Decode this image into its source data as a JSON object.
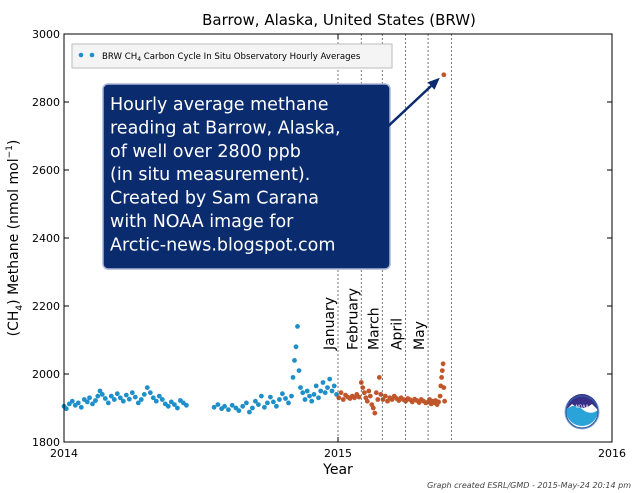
{
  "chart_data": {
    "type": "scatter",
    "title": "Barrow, Alaska, United States (BRW)",
    "xlabel": "Year",
    "ylabel": "(CH4) Methane (nmol mol−1)",
    "ylabel_parts": {
      "pre": "(CH",
      "sub": "4",
      "mid": ") Methane (nmol mol",
      "sup": "−1",
      "post": ")"
    },
    "xlim": [
      "2014-01-01",
      "2016-01-01"
    ],
    "ylim": [
      1800,
      3000
    ],
    "x_ticks": [
      {
        "value": "2014-01-01",
        "label": "2014"
      },
      {
        "value": "2015-01-01",
        "label": "2015"
      },
      {
        "value": "2016-01-01",
        "label": "2016"
      }
    ],
    "y_ticks": [
      1800,
      2000,
      2200,
      2400,
      2600,
      2800,
      3000
    ],
    "grid": false,
    "legend_position": "top-left",
    "legend": {
      "pre": "BRW CH",
      "sub": "4",
      "post": " Carbon Cycle In Situ Observatory Hourly Averages"
    },
    "month_markers": [
      {
        "label": "January",
        "date": "2015-01-01"
      },
      {
        "label": "February",
        "date": "2015-02-01"
      },
      {
        "label": "March",
        "date": "2015-03-01"
      },
      {
        "label": "April",
        "date": "2015-04-01"
      },
      {
        "label": "May",
        "date": "2015-05-01"
      }
    ],
    "annotation": {
      "lines": [
        "Hourly average methane",
        "reading at Barrow, Alaska,",
        "of well over 2800 ppb",
        "(in situ measurement).",
        "Created by Sam Carana",
        "with NOAA image for",
        "Arctic-news.blogspot.com"
      ],
      "arrow_to": {
        "x": "2015-05-22",
        "y": 2880
      }
    },
    "series": [
      {
        "color": "#1f8fc9",
        "points": [
          [
            "2014-01-01",
            1905
          ],
          [
            "2014-01-04",
            1898
          ],
          [
            "2014-01-08",
            1912
          ],
          [
            "2014-01-12",
            1920
          ],
          [
            "2014-01-16",
            1908
          ],
          [
            "2014-01-20",
            1915
          ],
          [
            "2014-01-24",
            1902
          ],
          [
            "2014-01-28",
            1925
          ],
          [
            "2014-02-01",
            1918
          ],
          [
            "2014-02-04",
            1930
          ],
          [
            "2014-02-08",
            1912
          ],
          [
            "2014-02-12",
            1922
          ],
          [
            "2014-02-15",
            1935
          ],
          [
            "2014-02-18",
            1950
          ],
          [
            "2014-02-21",
            1940
          ],
          [
            "2014-02-25",
            1928
          ],
          [
            "2014-03-01",
            1915
          ],
          [
            "2014-03-05",
            1935
          ],
          [
            "2014-03-09",
            1925
          ],
          [
            "2014-03-13",
            1942
          ],
          [
            "2014-03-17",
            1930
          ],
          [
            "2014-03-21",
            1920
          ],
          [
            "2014-03-25",
            1938
          ],
          [
            "2014-03-29",
            1926
          ],
          [
            "2014-04-02",
            1945
          ],
          [
            "2014-04-06",
            1932
          ],
          [
            "2014-04-10",
            1915
          ],
          [
            "2014-04-14",
            1925
          ],
          [
            "2014-04-18",
            1940
          ],
          [
            "2014-04-22",
            1960
          ],
          [
            "2014-04-26",
            1945
          ],
          [
            "2014-04-30",
            1930
          ],
          [
            "2014-05-04",
            1920
          ],
          [
            "2014-05-08",
            1935
          ],
          [
            "2014-05-12",
            1925
          ],
          [
            "2014-05-16",
            1912
          ],
          [
            "2014-05-20",
            1905
          ],
          [
            "2014-05-24",
            1918
          ],
          [
            "2014-05-28",
            1910
          ],
          [
            "2014-06-01",
            1900
          ],
          [
            "2014-06-05",
            1922
          ],
          [
            "2014-06-09",
            1915
          ],
          [
            "2014-06-13",
            1908
          ],
          [
            "2014-07-20",
            1902
          ],
          [
            "2014-07-25",
            1910
          ],
          [
            "2014-07-30",
            1898
          ],
          [
            "2014-08-03",
            1905
          ],
          [
            "2014-08-08",
            1895
          ],
          [
            "2014-08-13",
            1908
          ],
          [
            "2014-08-18",
            1900
          ],
          [
            "2014-08-22",
            1892
          ],
          [
            "2014-08-27",
            1905
          ],
          [
            "2014-09-01",
            1915
          ],
          [
            "2014-09-05",
            1888
          ],
          [
            "2014-09-09",
            1900
          ],
          [
            "2014-09-13",
            1920
          ],
          [
            "2014-09-17",
            1910
          ],
          [
            "2014-09-21",
            1935
          ],
          [
            "2014-09-25",
            1902
          ],
          [
            "2014-09-29",
            1915
          ],
          [
            "2014-10-03",
            1932
          ],
          [
            "2014-10-07",
            1918
          ],
          [
            "2014-10-11",
            1905
          ],
          [
            "2014-10-15",
            1925
          ],
          [
            "2014-10-19",
            1942
          ],
          [
            "2014-10-23",
            1928
          ],
          [
            "2014-10-27",
            1915
          ],
          [
            "2014-10-31",
            1935
          ],
          [
            "2014-11-02",
            1990
          ],
          [
            "2014-11-04",
            2040
          ],
          [
            "2014-11-06",
            2080
          ],
          [
            "2014-11-08",
            2140
          ],
          [
            "2014-11-10",
            2010
          ],
          [
            "2014-11-12",
            1960
          ],
          [
            "2014-11-15",
            1945
          ],
          [
            "2014-11-18",
            1925
          ],
          [
            "2014-11-21",
            1950
          ],
          [
            "2014-11-24",
            1935
          ],
          [
            "2014-11-27",
            1920
          ],
          [
            "2014-11-30",
            1940
          ],
          [
            "2014-12-03",
            1965
          ],
          [
            "2014-12-06",
            1930
          ],
          [
            "2014-12-09",
            1950
          ],
          [
            "2014-12-12",
            1975
          ],
          [
            "2014-12-15",
            1945
          ],
          [
            "2014-12-18",
            1960
          ],
          [
            "2014-12-21",
            1985
          ],
          [
            "2014-12-24",
            1950
          ],
          [
            "2014-12-27",
            1965
          ],
          [
            "2014-12-30",
            1940
          ]
        ]
      },
      {
        "color": "#c0562a",
        "points": [
          [
            "2015-01-02",
            1930
          ],
          [
            "2015-01-05",
            1945
          ],
          [
            "2015-01-08",
            1925
          ],
          [
            "2015-01-11",
            1938
          ],
          [
            "2015-01-14",
            1932
          ],
          [
            "2015-01-17",
            1928
          ],
          [
            "2015-01-20",
            1935
          ],
          [
            "2015-01-23",
            1930
          ],
          [
            "2015-01-26",
            1940
          ],
          [
            "2015-01-29",
            1932
          ],
          [
            "2015-02-01",
            1975
          ],
          [
            "2015-02-03",
            1960
          ],
          [
            "2015-02-05",
            1945
          ],
          [
            "2015-02-07",
            1930
          ],
          [
            "2015-02-09",
            1920
          ],
          [
            "2015-02-11",
            1950
          ],
          [
            "2015-02-13",
            1935
          ],
          [
            "2015-02-15",
            1910
          ],
          [
            "2015-02-17",
            1900
          ],
          [
            "2015-02-19",
            1885
          ],
          [
            "2015-02-21",
            1945
          ],
          [
            "2015-02-23",
            1925
          ],
          [
            "2015-02-25",
            1990
          ],
          [
            "2015-02-27",
            1940
          ],
          [
            "2015-03-02",
            1925
          ],
          [
            "2015-03-05",
            1935
          ],
          [
            "2015-03-08",
            1920
          ],
          [
            "2015-03-11",
            1930
          ],
          [
            "2015-03-14",
            1925
          ],
          [
            "2015-03-17",
            1935
          ],
          [
            "2015-03-20",
            1928
          ],
          [
            "2015-03-23",
            1922
          ],
          [
            "2015-03-26",
            1930
          ],
          [
            "2015-03-29",
            1925
          ],
          [
            "2015-04-01",
            1920
          ],
          [
            "2015-04-04",
            1928
          ],
          [
            "2015-04-07",
            1924
          ],
          [
            "2015-04-10",
            1918
          ],
          [
            "2015-04-13",
            1926
          ],
          [
            "2015-04-16",
            1922
          ],
          [
            "2015-04-19",
            1916
          ],
          [
            "2015-04-22",
            1925
          ],
          [
            "2015-04-25",
            1920
          ],
          [
            "2015-04-28",
            1915
          ],
          [
            "2015-05-01",
            1918
          ],
          [
            "2015-05-03",
            1925
          ],
          [
            "2015-05-05",
            1912
          ],
          [
            "2015-05-07",
            1920
          ],
          [
            "2015-05-09",
            1915
          ],
          [
            "2015-05-11",
            1922
          ],
          [
            "2015-05-13",
            1910
          ],
          [
            "2015-05-15",
            1918
          ],
          [
            "2015-05-17",
            1935
          ],
          [
            "2015-05-18",
            1965
          ],
          [
            "2015-05-19",
            1990
          ],
          [
            "2015-05-20",
            2010
          ],
          [
            "2015-05-21",
            2030
          ],
          [
            "2015-05-22",
            1960
          ],
          [
            "2015-05-22",
            2880
          ],
          [
            "2015-05-23",
            1920
          ]
        ]
      }
    ]
  },
  "credit": "Graph created ESRL/GMD - 2015-May-24 20:14 pm",
  "logo": {
    "text": "NOAA",
    "icon": "noaa-logo-icon"
  }
}
